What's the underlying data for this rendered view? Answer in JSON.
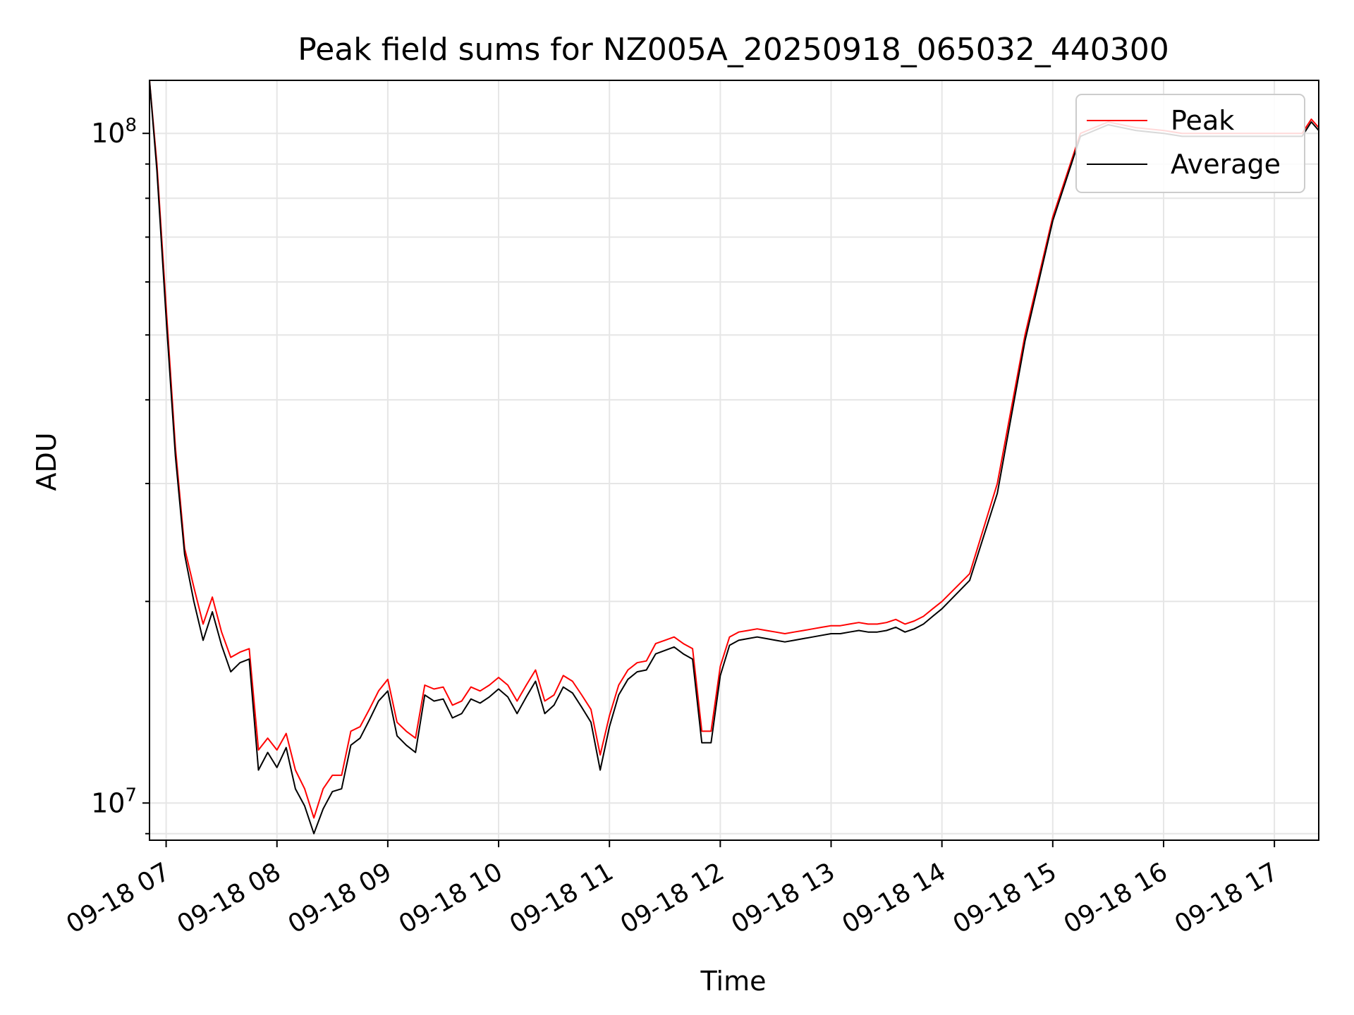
{
  "chart_data": {
    "type": "line",
    "title": "Peak field sums for NZ005A_20250918_065032_440300",
    "xlabel": "Time",
    "ylabel": "ADU",
    "yscale": "log",
    "xlim": [
      "09-18 06:51",
      "09-18 17:24"
    ],
    "ylim": [
      8800000,
      120000000
    ],
    "grid": true,
    "legend": {
      "placement": "top-right"
    },
    "x_ticks": [
      "09-18 07",
      "09-18 08",
      "09-18 09",
      "09-18 10",
      "09-18 11",
      "09-18 12",
      "09-18 13",
      "09-18 14",
      "09-18 15",
      "09-18 16",
      "09-18 17"
    ],
    "y_ticks": [
      {
        "base": "10",
        "exp": "7",
        "value": 10000000
      },
      {
        "base": "10",
        "exp": "8",
        "value": 100000000
      }
    ],
    "x": [
      "06:51",
      "06:55",
      "07:00",
      "07:05",
      "07:10",
      "07:15",
      "07:20",
      "07:25",
      "07:30",
      "07:35",
      "07:40",
      "07:45",
      "07:50",
      "07:55",
      "08:00",
      "08:05",
      "08:10",
      "08:15",
      "08:20",
      "08:25",
      "08:30",
      "08:35",
      "08:40",
      "08:45",
      "08:50",
      "08:55",
      "09:00",
      "09:05",
      "09:10",
      "09:15",
      "09:20",
      "09:25",
      "09:30",
      "09:35",
      "09:40",
      "09:45",
      "09:50",
      "09:55",
      "10:00",
      "10:05",
      "10:10",
      "10:15",
      "10:20",
      "10:25",
      "10:30",
      "10:35",
      "10:40",
      "10:45",
      "10:50",
      "10:55",
      "11:00",
      "11:05",
      "11:10",
      "11:15",
      "11:20",
      "11:25",
      "11:30",
      "11:35",
      "11:40",
      "11:45",
      "11:50",
      "11:55",
      "12:00",
      "12:05",
      "12:10",
      "12:15",
      "12:20",
      "12:25",
      "12:30",
      "12:35",
      "12:40",
      "12:45",
      "12:50",
      "12:55",
      "13:00",
      "13:05",
      "13:10",
      "13:15",
      "13:20",
      "13:25",
      "13:30",
      "13:35",
      "13:40",
      "13:45",
      "13:50",
      "13:55",
      "14:00",
      "14:15",
      "14:30",
      "14:45",
      "15:00",
      "15:15",
      "15:30",
      "15:45",
      "16:00",
      "16:10",
      "16:20",
      "16:30",
      "16:40",
      "16:50",
      "16:55",
      "17:00",
      "17:05",
      "17:10",
      "17:15",
      "17:20",
      "17:24"
    ],
    "series": [
      {
        "name": "Peak",
        "color": "#ff0000",
        "values": [
          120000000,
          90000000,
          55000000,
          34000000,
          24000000,
          21000000,
          18500000,
          20300000,
          18000000,
          16500000,
          16800000,
          17000000,
          12000000,
          12500000,
          12000000,
          12700000,
          11200000,
          10500000,
          9500000,
          10500000,
          11000000,
          11000000,
          12800000,
          13000000,
          13800000,
          14700000,
          15300000,
          13200000,
          12800000,
          12500000,
          15000000,
          14800000,
          14900000,
          14000000,
          14200000,
          14900000,
          14700000,
          15000000,
          15400000,
          15000000,
          14200000,
          15000000,
          15800000,
          14200000,
          14500000,
          15500000,
          15200000,
          14500000,
          13800000,
          11800000,
          13500000,
          15000000,
          15800000,
          16200000,
          16300000,
          17300000,
          17500000,
          17700000,
          17300000,
          17000000,
          12800000,
          12800000,
          16000000,
          17700000,
          18000000,
          18100000,
          18200000,
          18100000,
          18000000,
          17900000,
          18000000,
          18100000,
          18200000,
          18300000,
          18400000,
          18400000,
          18500000,
          18600000,
          18500000,
          18500000,
          18600000,
          18800000,
          18500000,
          18700000,
          19000000,
          19500000,
          20000000,
          22000000,
          30000000,
          50000000,
          75000000,
          100000000,
          104000000,
          102000000,
          101000000,
          100000000,
          100000000,
          100000000,
          100000000,
          100000000,
          100000000,
          100000000,
          100000000,
          100000000,
          100000000,
          105000000,
          102000000
        ]
      },
      {
        "name": "Average",
        "color": "#000000",
        "values": [
          120000000,
          88000000,
          53000000,
          33000000,
          23500000,
          20000000,
          17500000,
          19300000,
          17200000,
          15700000,
          16200000,
          16400000,
          11200000,
          11900000,
          11300000,
          12100000,
          10500000,
          9900000,
          9000000,
          9800000,
          10400000,
          10500000,
          12200000,
          12500000,
          13300000,
          14200000,
          14700000,
          12600000,
          12200000,
          11900000,
          14500000,
          14200000,
          14300000,
          13400000,
          13600000,
          14300000,
          14100000,
          14400000,
          14800000,
          14400000,
          13600000,
          14400000,
          15200000,
          13600000,
          14000000,
          14900000,
          14600000,
          13900000,
          13200000,
          11200000,
          13000000,
          14500000,
          15300000,
          15700000,
          15800000,
          16700000,
          16900000,
          17100000,
          16700000,
          16400000,
          12300000,
          12300000,
          15500000,
          17200000,
          17500000,
          17600000,
          17700000,
          17600000,
          17500000,
          17400000,
          17500000,
          17600000,
          17700000,
          17800000,
          17900000,
          17900000,
          18000000,
          18100000,
          18000000,
          18000000,
          18100000,
          18300000,
          18000000,
          18200000,
          18500000,
          19000000,
          19500000,
          21500000,
          29000000,
          49000000,
          74000000,
          99000000,
          103000000,
          101000000,
          100000000,
          99000000,
          99000000,
          99000000,
          99000000,
          99000000,
          99000000,
          99000000,
          99000000,
          99000000,
          99000000,
          104000000,
          101000000
        ]
      }
    ]
  }
}
